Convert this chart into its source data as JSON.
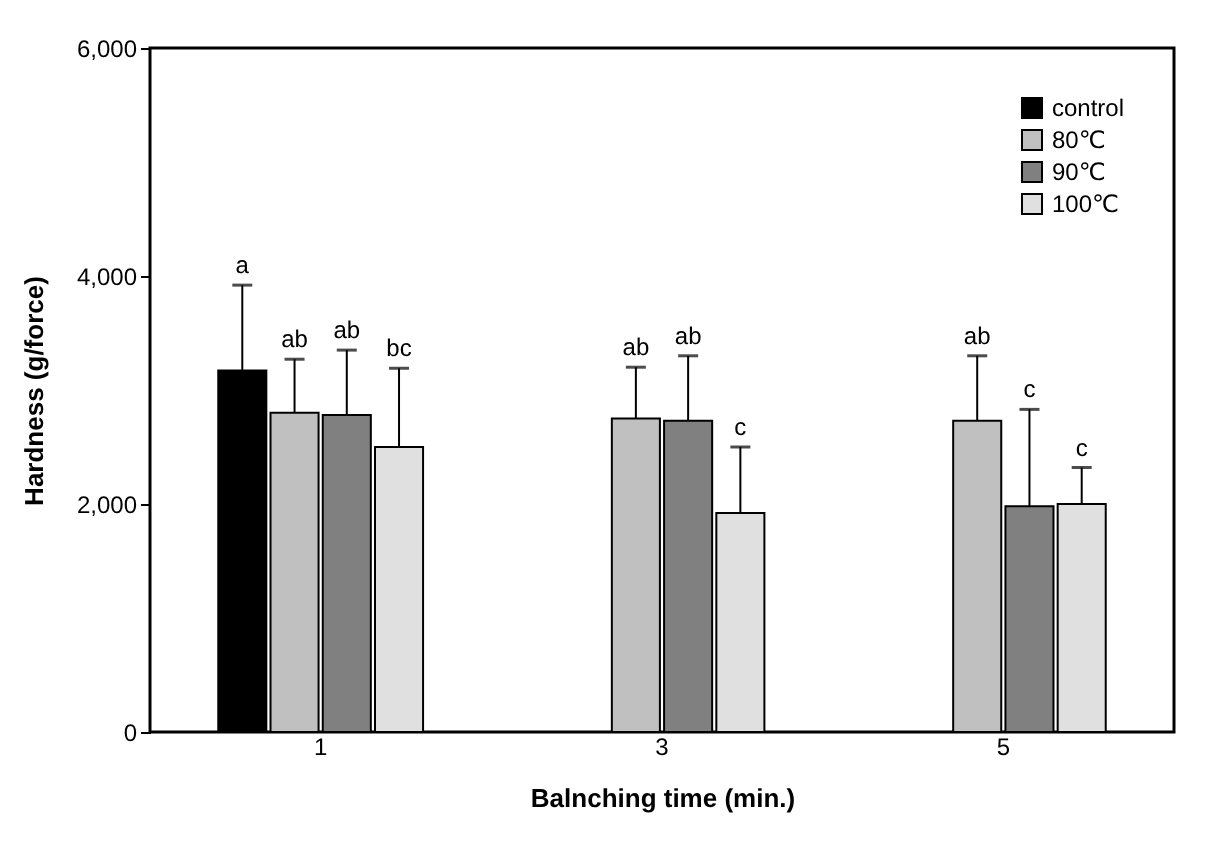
{
  "chart_data": {
    "type": "bar",
    "xlabel": "Balnching time (min.)",
    "ylabel": "Hardness (g/force)",
    "categories": [
      "1",
      "3",
      "5"
    ],
    "series": [
      {
        "name": "control",
        "color": "#000000",
        "values": [
          3170,
          null,
          null
        ],
        "errors": [
          750,
          null,
          null
        ]
      },
      {
        "name": "80℃",
        "color": "#c0c0c0",
        "values": [
          2800,
          2750,
          2730
        ],
        "errors": [
          470,
          450,
          570
        ]
      },
      {
        "name": "90℃",
        "color": "#808080",
        "values": [
          2780,
          2730,
          1980
        ],
        "errors": [
          570,
          570,
          850
        ]
      },
      {
        "name": "100℃",
        "color": "#e0e0e0",
        "values": [
          2500,
          1920,
          2000
        ],
        "errors": [
          690,
          580,
          320
        ]
      }
    ],
    "ylim": [
      0,
      6000
    ],
    "yticks": [
      0,
      {
        "value": 2000,
        "label": "2,000"
      },
      {
        "value": 4000,
        "label": "4,000"
      },
      {
        "value": 6000,
        "label": "6,000"
      }
    ],
    "grid": false,
    "legend": "top right",
    "annotations": [
      "a",
      "ab",
      "ab",
      "bc",
      "ab",
      "ab",
      "c",
      "ab",
      "c",
      "c"
    ]
  }
}
